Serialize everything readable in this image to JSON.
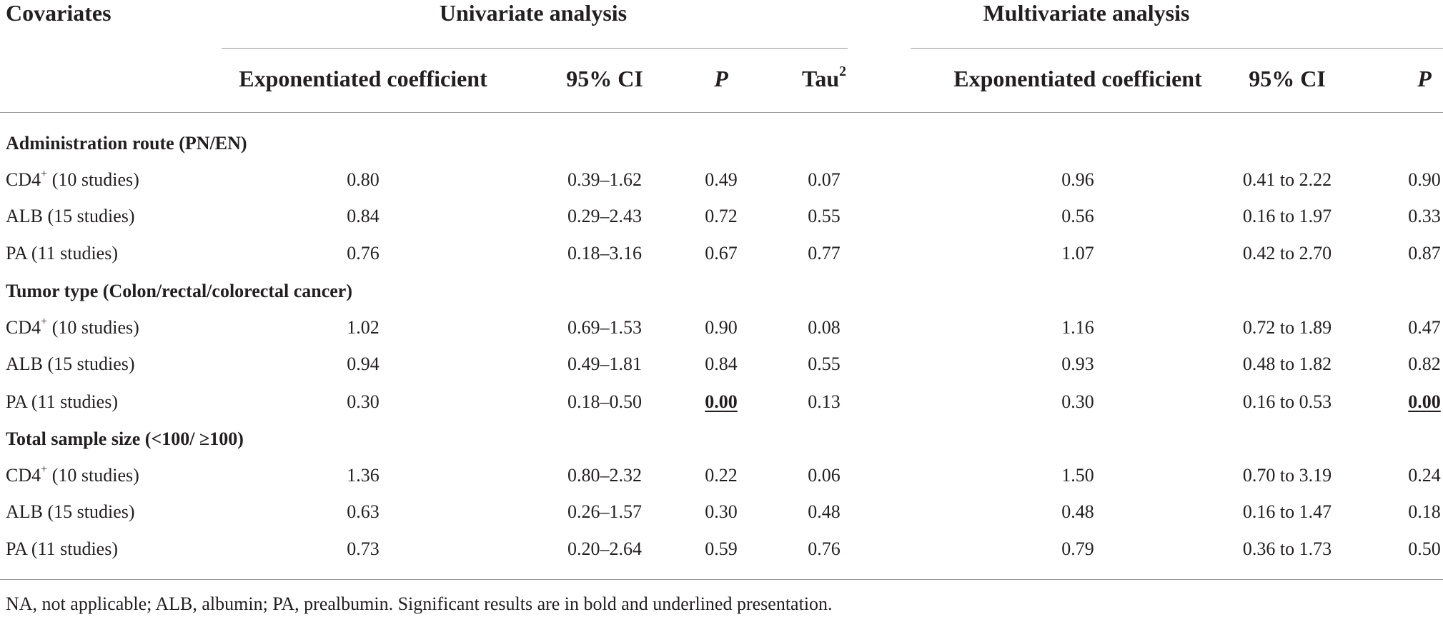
{
  "header": {
    "covariates": "Covariates",
    "univariate": "Univariate analysis",
    "multivariate": "Multivariate analysis",
    "uni_cols": {
      "coef": "Exponentiated coefficient",
      "ci": "95% CI",
      "p": "P",
      "tau_base": "Tau",
      "tau_sup": "2"
    },
    "multi_cols": {
      "coef": "Exponentiated coefficient",
      "ci": "95% CI",
      "p": "P"
    }
  },
  "sections": [
    {
      "title": "Administration route (PN/EN)",
      "rows": [
        {
          "label": "CD4",
          "sup": "+",
          "rest": " (10 studies)",
          "uni_coef": "0.80",
          "uni_ci": "0.39–1.62",
          "uni_p": "0.49",
          "tau2": "0.07",
          "multi_coef": "0.96",
          "multi_ci": "0.41 to 2.22",
          "multi_p": "0.90"
        },
        {
          "label": "ALB (15 studies)",
          "sup": "",
          "rest": "",
          "uni_coef": "0.84",
          "uni_ci": "0.29–2.43",
          "uni_p": "0.72",
          "tau2": "0.55",
          "multi_coef": "0.56",
          "multi_ci": "0.16 to 1.97",
          "multi_p": "0.33"
        },
        {
          "label": "PA (11 studies)",
          "sup": "",
          "rest": "",
          "uni_coef": "0.76",
          "uni_ci": "0.18–3.16",
          "uni_p": "0.67",
          "tau2": "0.77",
          "multi_coef": "1.07",
          "multi_ci": "0.42 to 2.70",
          "multi_p": "0.87"
        }
      ]
    },
    {
      "title": "Tumor type (Colon/rectal/colorectal cancer)",
      "rows": [
        {
          "label": "CD4",
          "sup": "+",
          "rest": " (10 studies)",
          "uni_coef": "1.02",
          "uni_ci": "0.69–1.53",
          "uni_p": "0.90",
          "tau2": "0.08",
          "multi_coef": "1.16",
          "multi_ci": "0.72 to 1.89",
          "multi_p": "0.47"
        },
        {
          "label": "ALB (15 studies)",
          "sup": "",
          "rest": "",
          "uni_coef": "0.94",
          "uni_ci": "0.49–1.81",
          "uni_p": "0.84",
          "tau2": "0.55",
          "multi_coef": "0.93",
          "multi_ci": "0.48 to 1.82",
          "multi_p": "0.82"
        },
        {
          "label": "PA (11 studies)",
          "sup": "",
          "rest": "",
          "uni_coef": "0.30",
          "uni_ci": "0.18–0.50",
          "uni_p": "0.00",
          "tau2": "0.13",
          "multi_coef": "0.30",
          "multi_ci": "0.16 to 0.53",
          "multi_p": "0.00",
          "significant": true
        }
      ]
    },
    {
      "title": "Total sample size (<100/ ≥100)",
      "rows": [
        {
          "label": "CD4",
          "sup": "+",
          "rest": " (10 studies)",
          "uni_coef": "1.36",
          "uni_ci": "0.80–2.32",
          "uni_p": "0.22",
          "tau2": "0.06",
          "multi_coef": "1.50",
          "multi_ci": "0.70 to 3.19",
          "multi_p": "0.24"
        },
        {
          "label": "ALB (15 studies)",
          "sup": "",
          "rest": "",
          "uni_coef": "0.63",
          "uni_ci": "0.26–1.57",
          "uni_p": "0.30",
          "tau2": "0.48",
          "multi_coef": "0.48",
          "multi_ci": "0.16 to 1.47",
          "multi_p": "0.18"
        },
        {
          "label": "PA (11 studies)",
          "sup": "",
          "rest": "",
          "uni_coef": "0.73",
          "uni_ci": "0.20–2.64",
          "uni_p": "0.59",
          "tau2": "0.76",
          "multi_coef": "0.79",
          "multi_ci": "0.36 to 1.73",
          "multi_p": "0.50"
        }
      ]
    }
  ],
  "footnote": "NA, not applicable; ALB, albumin; PA, prealbumin. Significant results are in bold and underlined presentation."
}
